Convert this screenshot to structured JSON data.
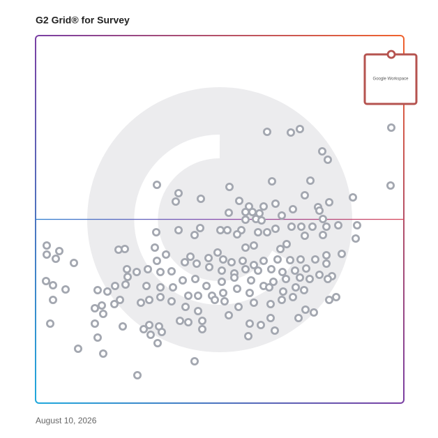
{
  "chart_data": {
    "type": "scatter",
    "title": "G2 Grid® for Survey",
    "date": "August 10, 2026",
    "xlim": [
      0,
      528
    ],
    "ylim": [
      0,
      527
    ],
    "color": "#a3a7b0",
    "x": [
      332,
      366,
      379,
      510,
      411,
      419,
      509,
      278,
      339,
      394,
      386,
      455,
      421,
      405,
      407,
      292,
      306,
      327,
      344,
      369,
      353,
      277,
      301,
      311,
      321,
      301,
      316,
      324,
      412,
      434,
      461,
      417,
      174,
      205,
      201,
      237,
      295,
      344,
      367,
      381,
      397,
      459,
      439,
      412,
      386,
      360,
      351,
      332,
      319,
      289,
      275,
      265,
      301,
      313,
      205,
      236,
      228,
      173,
      171,
      119,
      128,
      16,
      34,
      16,
      29,
      55,
      174,
      187,
      222,
      248,
      261,
      269,
      281,
      297,
      313,
      327,
      347,
      365,
      380,
      401,
      417,
      417,
      388,
      372,
      354,
      338,
      319,
      301,
      285,
      267,
      249,
      231,
      214,
      195,
      179,
      161,
      145,
      131,
      132,
      211,
      229,
      245,
      267,
      285,
      309,
      327,
      341,
      359,
      379,
      393,
      407,
      425,
      419,
      373,
      355,
      335,
      307,
      289,
      269,
      253,
      233,
      219,
      197,
      179,
      159,
      129,
      114,
      89,
      103,
      15,
      25,
      43,
      25,
      121,
      113,
      95,
      85,
      151,
      163,
      179,
      195,
      215,
      233,
      257,
      271,
      291,
      313,
      337,
      353,
      369,
      385,
      421,
      431,
      399,
      387,
      377,
      337,
      323,
      307,
      277,
      239,
      219,
      207,
      177,
      163,
      155,
      125,
      97,
      85,
      21,
      165,
      181,
      239,
      343,
      305,
      89,
      61,
      97,
      175,
      228,
      146
    ],
    "values": [
      389,
      388,
      393,
      395,
      361,
      349,
      312,
      310,
      318,
      319,
      298,
      295,
      288,
      281,
      276,
      290,
      282,
      282,
      286,
      278,
      269,
      273,
      274,
      274,
      272,
      263,
      264,
      262,
      264,
      255,
      255,
      253,
      313,
      301,
      289,
      293,
      248,
      250,
      253,
      253,
      253,
      236,
      214,
      241,
      240,
      228,
      221,
      245,
      245,
      242,
      248,
      248,
      223,
      226,
      248,
      251,
      241,
      245,
      223,
      220,
      221,
      226,
      218,
      213,
      207,
      201,
      204,
      213,
      210,
      208,
      216,
      206,
      202,
      204,
      198,
      204,
      206,
      205,
      206,
      206,
      212,
      200,
      193,
      190,
      188,
      192,
      190,
      192,
      186,
      190,
      195,
      200,
      202,
      189,
      188,
      192,
      188,
      192,
      181,
      176,
      178,
      168,
      174,
      180,
      176,
      168,
      174,
      178,
      180,
      178,
      184,
      182,
      178,
      166,
      160,
      166,
      158,
      164,
      158,
      154,
      154,
      154,
      166,
      166,
      168,
      170,
      168,
      162,
      160,
      175,
      169,
      163,
      148,
      148,
      142,
      140,
      136,
      144,
      148,
      152,
      146,
      138,
      132,
      148,
      146,
      138,
      144,
      142,
      148,
      152,
      162,
      148,
      152,
      130,
      134,
      122,
      122,
      112,
      114,
      126,
      118,
      116,
      118,
      110,
      112,
      106,
      110,
      128,
      114,
      114,
      98,
      102,
      106,
      104,
      96,
      94,
      78,
      71,
      86,
      60,
      40
    ],
    "highlight": {
      "label": "Google Workspace",
      "x": 510,
      "y": 500,
      "color": "#b5534f"
    }
  }
}
